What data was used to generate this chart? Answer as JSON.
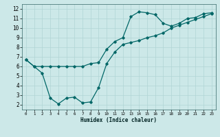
{
  "xlabel": "Humidex (Indice chaleur)",
  "bg_color": "#cce8e8",
  "grid_color": "#b0d4d4",
  "line_color": "#006666",
  "xmin": -0.5,
  "xmax": 23.5,
  "ymin": 1.5,
  "ymax": 12.5,
  "curve1_x": [
    0,
    1,
    2,
    3,
    4,
    5,
    6,
    7,
    8,
    9,
    10,
    11,
    12,
    13,
    14,
    15,
    16,
    17,
    18,
    19,
    20,
    21,
    22,
    23
  ],
  "curve1_y": [
    6.7,
    6.0,
    6.0,
    6.0,
    6.0,
    6.0,
    6.0,
    6.0,
    6.3,
    6.4,
    7.8,
    8.6,
    9.0,
    11.2,
    11.7,
    11.6,
    11.4,
    10.5,
    10.2,
    10.5,
    11.0,
    11.1,
    11.5,
    11.6
  ],
  "curve2_x": [
    0,
    1,
    2,
    3,
    4,
    5,
    6,
    7,
    8,
    9,
    10,
    11,
    12,
    13,
    14,
    15,
    16,
    17,
    18,
    19,
    20,
    21,
    22,
    23
  ],
  "curve2_y": [
    6.7,
    6.0,
    5.3,
    2.7,
    2.1,
    2.7,
    2.8,
    2.2,
    2.3,
    3.8,
    6.3,
    7.5,
    8.3,
    8.5,
    8.7,
    9.0,
    9.2,
    9.5,
    10.0,
    10.3,
    10.6,
    10.9,
    11.2,
    11.5
  ],
  "yticks": [
    2,
    3,
    4,
    5,
    6,
    7,
    8,
    9,
    10,
    11,
    12
  ],
  "xticks": [
    0,
    1,
    2,
    3,
    4,
    5,
    6,
    7,
    8,
    9,
    10,
    11,
    12,
    13,
    14,
    15,
    16,
    17,
    18,
    19,
    20,
    21,
    22,
    23
  ]
}
